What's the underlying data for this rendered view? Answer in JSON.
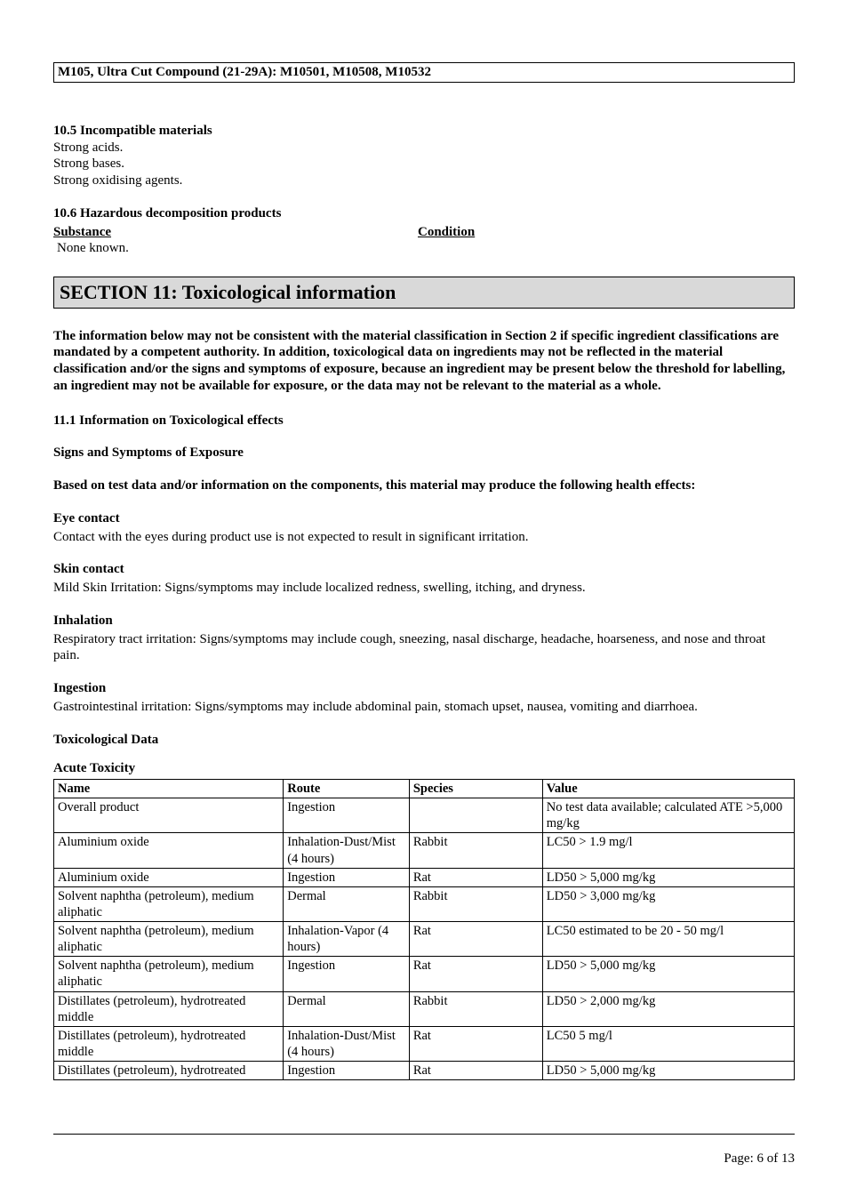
{
  "header": {
    "title": "M105, Ultra Cut Compound (21-29A): M10501, M10508, M10532"
  },
  "s10_5": {
    "heading": "10.5 Incompatible materials",
    "lines": [
      "Strong acids.",
      "Strong bases.",
      "Strong oxidising agents."
    ]
  },
  "s10_6": {
    "heading": "10.6 Hazardous decomposition products",
    "substance_label": "Substance",
    "condition_label": "Condition",
    "none_text": "None known."
  },
  "section11": {
    "title": "SECTION 11: Toxicological information",
    "disclaimer": "The information below may not be consistent with the material classification in Section 2 if specific ingredient classifications are mandated by a competent authority.  In addition, toxicological data on ingredients may not be reflected in the material classification and/or the signs and symptoms of exposure, because an ingredient may be present below the threshold for labelling, an ingredient may not be available for exposure, or the data may not be relevant to the material as a whole.",
    "s11_1": "11.1 Information on Toxicological effects",
    "signs_heading": "Signs and Symptoms of Exposure",
    "based_on": "Based on test data and/or information on the components, this material may produce the following health effects:",
    "eye": {
      "h": "Eye contact",
      "t": "Contact with the eyes during product use is not expected to result in significant irritation."
    },
    "skin": {
      "h": "Skin contact",
      "t": "Mild Skin Irritation: Signs/symptoms may include localized redness, swelling, itching, and dryness."
    },
    "inhalation": {
      "h": "Inhalation",
      "t": "Respiratory tract irritation: Signs/symptoms may include cough, sneezing, nasal discharge, headache, hoarseness, and nose and throat pain."
    },
    "ingestion": {
      "h": "Ingestion",
      "t": "Gastrointestinal irritation: Signs/symptoms may include abdominal pain, stomach upset, nausea, vomiting and diarrhoea."
    },
    "toxdata_heading": "Toxicological Data",
    "acute_heading": "Acute Toxicity",
    "table": {
      "headers": [
        "Name",
        "Route",
        "Species",
        "Value"
      ],
      "rows": [
        [
          "Overall product",
          "Ingestion",
          "",
          "No test data available; calculated ATE >5,000 mg/kg"
        ],
        [
          "Aluminium oxide",
          "Inhalation-Dust/Mist (4 hours)",
          "Rabbit",
          "LC50 > 1.9 mg/l"
        ],
        [
          "Aluminium oxide",
          "Ingestion",
          "Rat",
          "LD50 > 5,000 mg/kg"
        ],
        [
          "Solvent naphtha (petroleum), medium aliphatic",
          "Dermal",
          "Rabbit",
          "LD50 > 3,000 mg/kg"
        ],
        [
          "Solvent naphtha (petroleum), medium aliphatic",
          "Inhalation-Vapor (4 hours)",
          "Rat",
          "LC50 estimated to be 20 - 50 mg/l"
        ],
        [
          "Solvent naphtha (petroleum), medium aliphatic",
          "Ingestion",
          "Rat",
          "LD50 > 5,000 mg/kg"
        ],
        [
          "Distillates (petroleum), hydrotreated middle",
          "Dermal",
          "Rabbit",
          "LD50 > 2,000 mg/kg"
        ],
        [
          "Distillates (petroleum), hydrotreated middle",
          "Inhalation-Dust/Mist (4 hours)",
          "Rat",
          "LC50  5 mg/l"
        ],
        [
          "Distillates (petroleum), hydrotreated",
          "Ingestion",
          "Rat",
          "LD50 > 5,000 mg/kg"
        ]
      ]
    }
  },
  "footer": {
    "page": "Page: 6 of  13"
  }
}
